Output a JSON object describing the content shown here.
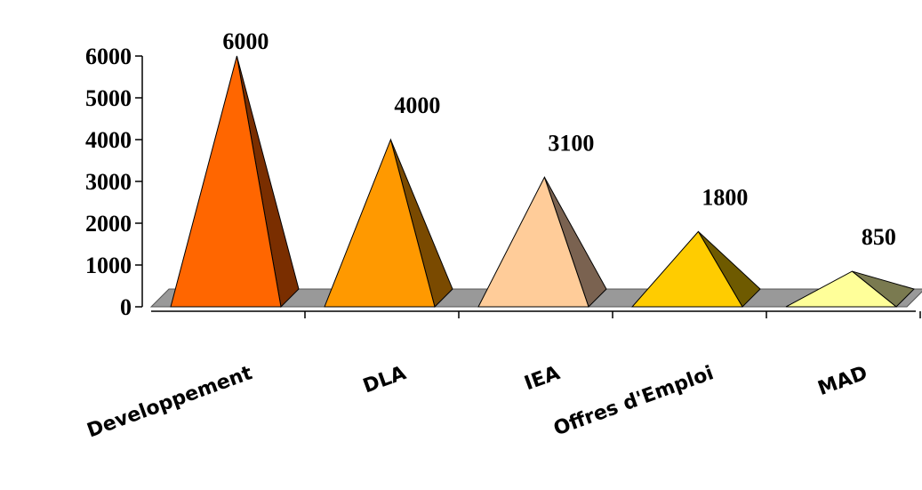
{
  "chart_data": {
    "type": "bar",
    "style": "3d-pyramid",
    "categories": [
      "Developpement",
      "DLA",
      "IEA",
      "Offres d'Emploi",
      "MAD"
    ],
    "values": [
      6000,
      4000,
      3100,
      1800,
      850
    ],
    "data_labels": [
      "6000",
      "4000",
      "3100",
      "1800",
      "850"
    ],
    "y_ticks": [
      "0",
      "1000",
      "2000",
      "3000",
      "4000",
      "5000",
      "6000"
    ],
    "ylim": [
      0,
      6000
    ],
    "grid": false,
    "legend": "none",
    "colors": {
      "front": [
        "#FF6600",
        "#FF9900",
        "#FFCC99",
        "#FFCC00",
        "#FFFF99"
      ],
      "side": [
        "#7A2E00",
        "#7A4A00",
        "#7A6250",
        "#6E5A00",
        "#7A7A50"
      ],
      "floor": "#999999"
    }
  }
}
